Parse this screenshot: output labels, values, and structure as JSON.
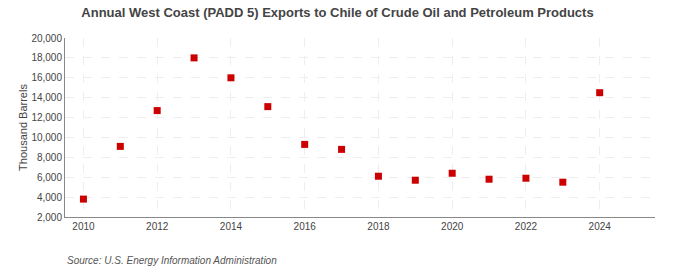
{
  "chart_data": {
    "type": "scatter",
    "title": "Annual West Coast (PADD 5) Exports to Chile of Crude Oil and Petroleum Products",
    "ylabel": "Thousand Barrels",
    "annotations": [
      "Source: U.S. Energy Information Administration"
    ],
    "x": [
      2010,
      2011,
      2012,
      2013,
      2014,
      2015,
      2016,
      2017,
      2018,
      2019,
      2020,
      2021,
      2022,
      2023,
      2024
    ],
    "values": [
      3800,
      9100,
      12700,
      18000,
      16000,
      13100,
      9300,
      8800,
      6100,
      5700,
      6400,
      5800,
      5900,
      5500,
      14500
    ],
    "color": "#cc0000",
    "marker": "square",
    "xlim": [
      2009.5,
      2025.5
    ],
    "xticks": [
      2010,
      2012,
      2014,
      2016,
      2018,
      2020,
      2022,
      2024
    ],
    "ylim": [
      2000,
      20000
    ],
    "yticks": [
      {
        "value": 2000,
        "label": "2,000"
      },
      {
        "value": 4000,
        "label": "4,000"
      },
      {
        "value": 6000,
        "label": "6,000"
      },
      {
        "value": 8000,
        "label": "8,000"
      },
      {
        "value": 10000,
        "label": "10,000"
      },
      {
        "value": 12000,
        "label": "12,000"
      },
      {
        "value": 14000,
        "label": "14,000"
      },
      {
        "value": 16000,
        "label": "16,000"
      },
      {
        "value": 18000,
        "label": "18,000"
      },
      {
        "value": 20000,
        "label": "20,000"
      }
    ],
    "grid": true
  }
}
